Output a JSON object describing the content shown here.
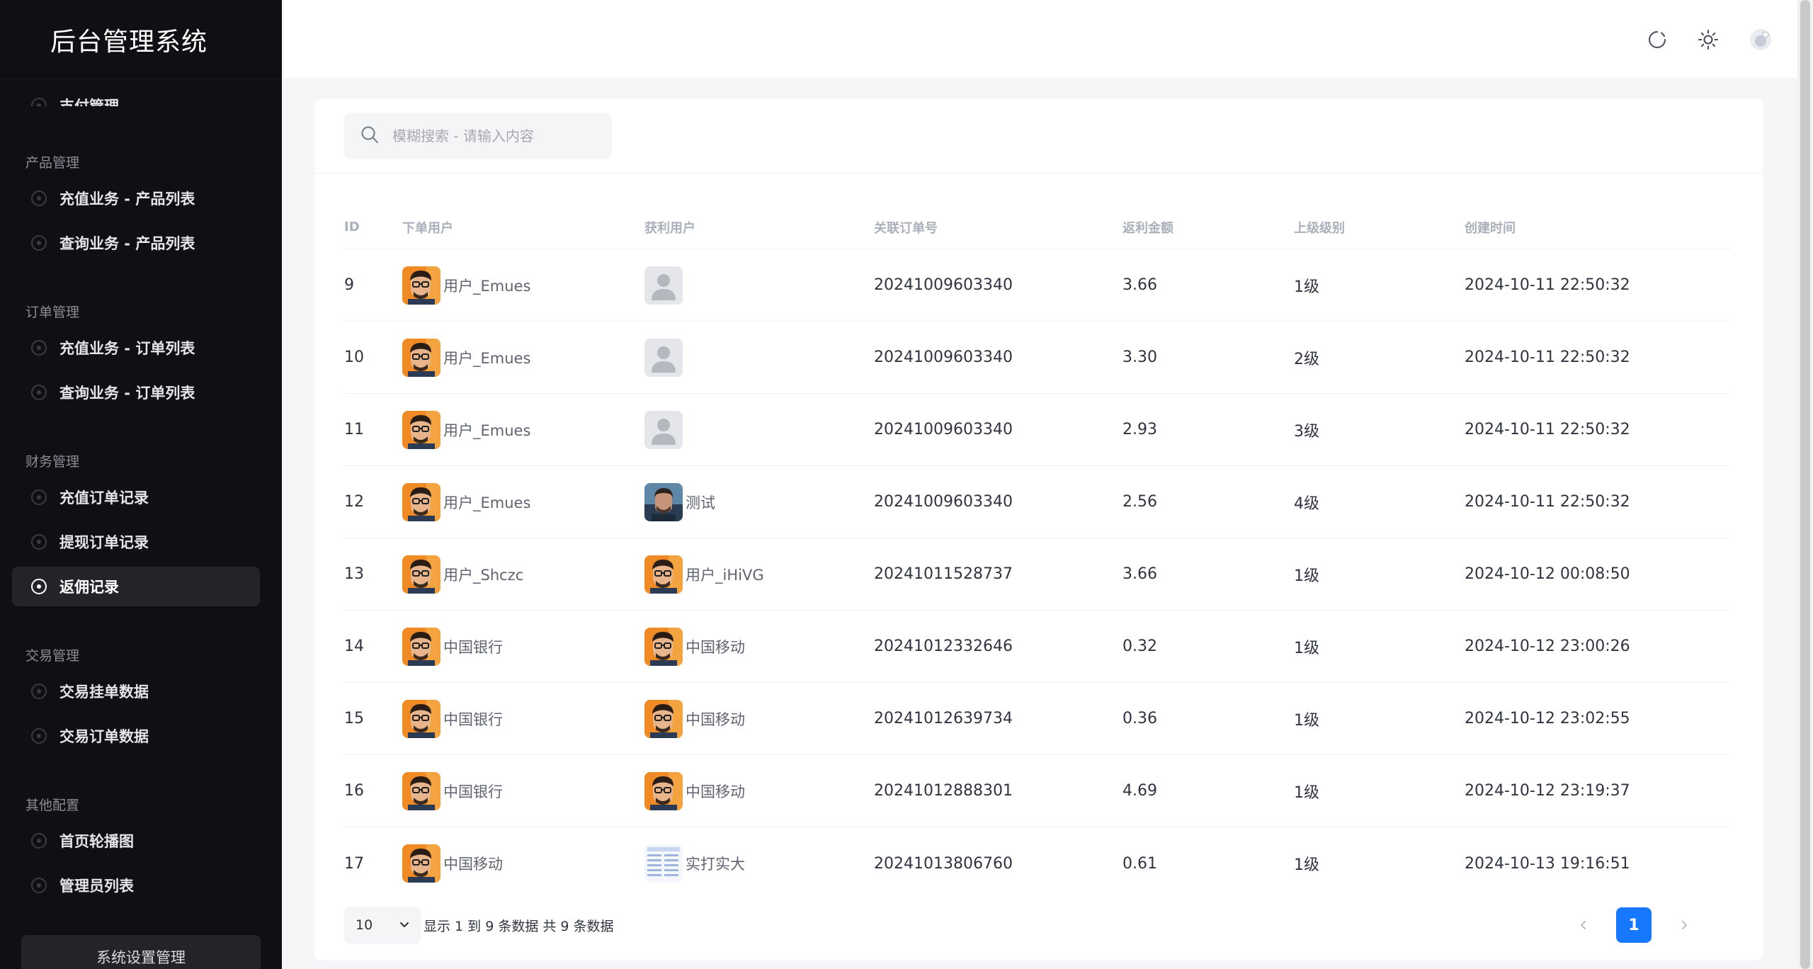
{
  "app": {
    "title": "后台管理系统"
  },
  "sidebar": {
    "partial_item": "支付管理",
    "groups": [
      {
        "title": "产品管理",
        "items": [
          "充值业务 - 产品列表",
          "查询业务 - 产品列表"
        ]
      },
      {
        "title": "订单管理",
        "items": [
          "充值业务 - 订单列表",
          "查询业务 - 订单列表"
        ]
      },
      {
        "title": "财务管理",
        "items": [
          "充值订单记录",
          "提现订单记录",
          "返佣记录"
        ]
      },
      {
        "title": "交易管理",
        "items": [
          "交易挂单数据",
          "交易订单数据"
        ]
      },
      {
        "title": "其他配置",
        "items": [
          "首页轮播图",
          "管理员列表"
        ]
      }
    ],
    "active_item": "返佣记录",
    "bottom_button": "系统设置管理"
  },
  "header": {
    "icons": [
      "refresh-icon",
      "sun-theme-icon",
      "user-avatar-icon"
    ]
  },
  "search": {
    "placeholder": "模糊搜索 - 请输入内容",
    "value": ""
  },
  "table": {
    "columns": [
      "ID",
      "下单用户",
      "获利用户",
      "关联订单号",
      "返利金额",
      "上级级别",
      "创建时间"
    ],
    "rows": [
      {
        "id": "9",
        "user": "用户_Emues",
        "user_avatar": "cartoon",
        "recv": "",
        "recv_avatar": "placeholder",
        "order": "20241009603340",
        "amount": "3.66",
        "level": "1级",
        "time": "2024-10-11 22:50:32"
      },
      {
        "id": "10",
        "user": "用户_Emues",
        "user_avatar": "cartoon",
        "recv": "",
        "recv_avatar": "placeholder",
        "order": "20241009603340",
        "amount": "3.30",
        "level": "2级",
        "time": "2024-10-11 22:50:32"
      },
      {
        "id": "11",
        "user": "用户_Emues",
        "user_avatar": "cartoon",
        "recv": "",
        "recv_avatar": "placeholder",
        "order": "20241009603340",
        "amount": "2.93",
        "level": "3级",
        "time": "2024-10-11 22:50:32"
      },
      {
        "id": "12",
        "user": "用户_Emues",
        "user_avatar": "cartoon",
        "recv": "测试",
        "recv_avatar": "photo",
        "order": "20241009603340",
        "amount": "2.56",
        "level": "4级",
        "time": "2024-10-11 22:50:32"
      },
      {
        "id": "13",
        "user": "用户_Shczc",
        "user_avatar": "cartoon",
        "recv": "用户_iHiVG",
        "recv_avatar": "cartoon",
        "order": "20241011528737",
        "amount": "3.66",
        "level": "1级",
        "time": "2024-10-12 00:08:50"
      },
      {
        "id": "14",
        "user": "中国银行",
        "user_avatar": "cartoon",
        "recv": "中国移动",
        "recv_avatar": "cartoon",
        "order": "20241012332646",
        "amount": "0.32",
        "level": "1级",
        "time": "2024-10-12 23:00:26"
      },
      {
        "id": "15",
        "user": "中国银行",
        "user_avatar": "cartoon",
        "recv": "中国移动",
        "recv_avatar": "cartoon",
        "order": "20241012639734",
        "amount": "0.36",
        "level": "1级",
        "time": "2024-10-12 23:02:55"
      },
      {
        "id": "16",
        "user": "中国银行",
        "user_avatar": "cartoon",
        "recv": "中国移动",
        "recv_avatar": "cartoon",
        "order": "20241012888301",
        "amount": "4.69",
        "level": "1级",
        "time": "2024-10-12 23:19:37"
      },
      {
        "id": "17",
        "user": "中国移动",
        "user_avatar": "cartoon",
        "recv": "实打实大",
        "recv_avatar": "document",
        "order": "20241013806760",
        "amount": "0.61",
        "level": "1级",
        "time": "2024-10-13 19:16:51"
      }
    ]
  },
  "pagination": {
    "page_size": "10",
    "info": "显示 1 到 9 条数据 共 9 条数据",
    "current_page": "1"
  },
  "colors": {
    "sidebar_bg": "#0f1014",
    "accent": "#1677ff",
    "page_bg": "#f4f6f8"
  }
}
